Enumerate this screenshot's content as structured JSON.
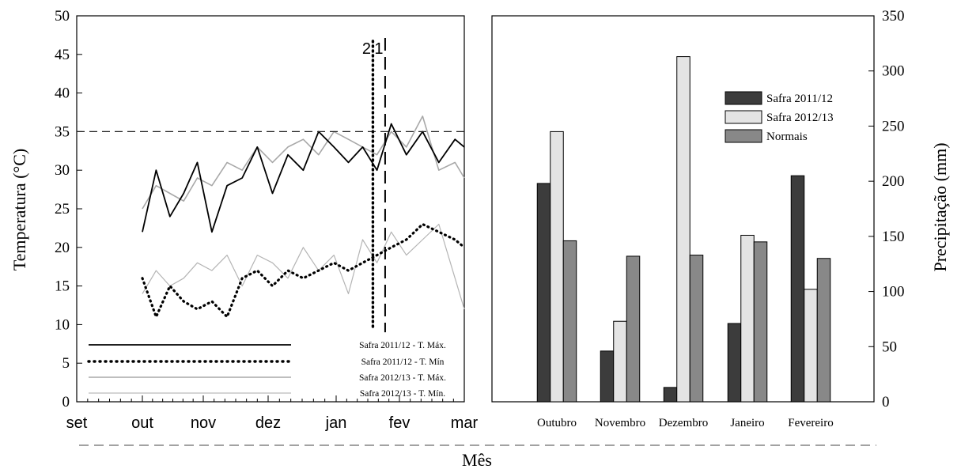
{
  "xlabel_shared": "Mês",
  "chart_data": [
    {
      "type": "line",
      "ylabel": "Temperatura (°C)",
      "xlabel": "",
      "ylim": [
        0,
        50
      ],
      "yticks": [
        0,
        5,
        10,
        15,
        20,
        25,
        30,
        35,
        40,
        45,
        50
      ],
      "x_tick_labels": [
        "set",
        "out",
        "nov",
        "dez",
        "jan",
        "fev",
        "mar"
      ],
      "grid": false,
      "reference_line_y": 35,
      "vertical_markers": [
        {
          "label": "2",
          "x": "jan 19"
        },
        {
          "label": "1",
          "x": "jan 25"
        }
      ],
      "legend_placement": "bottom-left",
      "series": [
        {
          "name": "Safra 2011/12 - T. Máx.",
          "color": "#000000",
          "style": "solid",
          "x": [
            "out 1",
            "out 8",
            "out 15",
            "out 22",
            "out 29",
            "nov 5",
            "nov 12",
            "nov 19",
            "nov 26",
            "dez 3",
            "dez 10",
            "dez 17",
            "dez 24",
            "dez 31",
            "jan 7",
            "jan 14",
            "jan 21",
            "jan 28",
            "fev 4",
            "fev 11",
            "fev 18",
            "fev 25",
            "mar 1"
          ],
          "values": [
            22,
            30,
            24,
            27,
            31,
            22,
            28,
            29,
            33,
            27,
            32,
            30,
            35,
            33,
            31,
            33,
            30,
            36,
            32,
            35,
            31,
            34,
            33
          ]
        },
        {
          "name": "Safra 2011/12 - T. Mín",
          "color": "#000000",
          "style": "dotted",
          "x": [
            "out 1",
            "out 8",
            "out 15",
            "out 22",
            "out 29",
            "nov 5",
            "nov 12",
            "nov 19",
            "nov 26",
            "dez 3",
            "dez 10",
            "dez 17",
            "dez 24",
            "dez 31",
            "jan 7",
            "jan 14",
            "jan 21",
            "jan 28",
            "fev 4",
            "fev 11",
            "fev 18",
            "fev 25",
            "mar 1"
          ],
          "values": [
            16,
            11,
            15,
            13,
            12,
            13,
            11,
            16,
            17,
            15,
            17,
            16,
            17,
            18,
            17,
            18,
            19,
            20,
            21,
            23,
            22,
            21,
            20
          ]
        },
        {
          "name": "Safra 2012/13 - T. Máx.",
          "color": "#a8a8a8",
          "style": "solid",
          "x": [
            "out 1",
            "out 8",
            "out 15",
            "out 22",
            "out 29",
            "nov 5",
            "nov 12",
            "nov 19",
            "nov 26",
            "dez 3",
            "dez 10",
            "dez 17",
            "dez 24",
            "dez 31",
            "jan 7",
            "jan 14",
            "jan 21",
            "jan 28",
            "fev 4",
            "fev 11",
            "fev 18",
            "fev 25",
            "mar 1"
          ],
          "values": [
            25,
            28,
            27,
            26,
            29,
            28,
            31,
            30,
            33,
            31,
            33,
            34,
            32,
            35,
            34,
            33,
            32,
            35,
            33,
            37,
            30,
            31,
            29
          ]
        },
        {
          "name": "Safra 2012/13 - T. Mín.",
          "color": "#a8a8a8",
          "style": "solid",
          "x": [
            "out 1",
            "out 8",
            "out 15",
            "out 22",
            "out 29",
            "nov 5",
            "nov 12",
            "nov 19",
            "nov 26",
            "dez 3",
            "dez 10",
            "dez 17",
            "dez 24",
            "dez 31",
            "jan 7",
            "jan 14",
            "jan 21",
            "jan 28",
            "fev 4",
            "fev 11",
            "fev 18",
            "fev 25",
            "mar 1"
          ],
          "values": [
            14,
            17,
            15,
            16,
            18,
            17,
            19,
            15,
            19,
            18,
            16,
            20,
            17,
            19,
            14,
            21,
            18,
            22,
            19,
            21,
            23,
            16,
            12
          ]
        }
      ]
    },
    {
      "type": "bar",
      "ylabel": "Precipitação (mm)",
      "xlabel": "",
      "ylim": [
        0,
        350
      ],
      "yticks": [
        0,
        50,
        100,
        150,
        200,
        250,
        300,
        350
      ],
      "categories": [
        "Outubro",
        "Novembro",
        "Dezembro",
        "Janeiro",
        "Fevereiro"
      ],
      "legend_placement": "top-right",
      "series": [
        {
          "name": "Safra 2011/12",
          "color": "#3c3c3c",
          "values": [
            198,
            46,
            13,
            71,
            205
          ]
        },
        {
          "name": "Safra 2012/13",
          "color": "#e4e4e4",
          "values": [
            245,
            73,
            313,
            151,
            102
          ]
        },
        {
          "name": "Normais",
          "color": "#888888",
          "values": [
            146,
            132,
            133,
            145,
            130
          ]
        }
      ]
    }
  ]
}
